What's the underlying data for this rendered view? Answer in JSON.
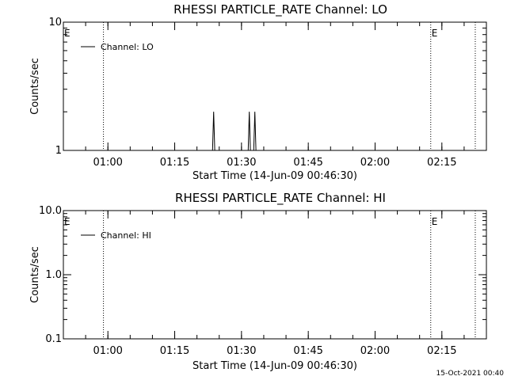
{
  "chart_data": [
    {
      "type": "line",
      "title": "RHESSI PARTICLE_RATE Channel: LO",
      "xlabel": "Start Time (14-Jun-09 00:46:30)",
      "ylabel": "Counts/sec",
      "y_scale": "log",
      "ylim": [
        1,
        10
      ],
      "y_ticks": [
        1,
        10
      ],
      "y_tick_labels": [
        "1",
        "10"
      ],
      "xlim": [
        "00:50:00",
        "02:25:00"
      ],
      "x_ticks": [
        "01:00",
        "01:15",
        "01:30",
        "01:45",
        "02:00",
        "02:15"
      ],
      "legend": {
        "placement": "top-left",
        "entries": [
          "Channel: LO"
        ]
      },
      "series": [
        {
          "name": "Channel: LO",
          "points": [
            [
              "01:23:30",
              1
            ],
            [
              "01:23:45",
              2
            ],
            [
              "01:24:00",
              1
            ],
            [
              "01:31:30",
              1
            ],
            [
              "01:31:45",
              2
            ],
            [
              "01:32:00",
              1
            ],
            [
              "01:32:45",
              1
            ],
            [
              "01:33:00",
              2
            ],
            [
              "01:33:15",
              1
            ]
          ]
        }
      ],
      "vertical_markers": [
        {
          "time": "00:50:00",
          "label": "E",
          "style": "solid"
        },
        {
          "time": "00:59:00",
          "label": "",
          "style": "dotted"
        },
        {
          "time": "02:12:30",
          "label": "E",
          "style": "dotted"
        },
        {
          "time": "02:22:30",
          "label": "",
          "style": "dotted"
        }
      ]
    },
    {
      "type": "line",
      "title": "RHESSI PARTICLE_RATE Channel: HI",
      "xlabel": "Start Time (14-Jun-09 00:46:30)",
      "ylabel": "Counts/sec",
      "y_scale": "log",
      "ylim": [
        0.1,
        10
      ],
      "y_ticks": [
        0.1,
        1,
        10
      ],
      "y_tick_labels": [
        "0.1",
        "1.0",
        "10.0"
      ],
      "xlim": [
        "00:50:00",
        "02:25:00"
      ],
      "x_ticks": [
        "01:00",
        "01:15",
        "01:30",
        "01:45",
        "02:00",
        "02:15"
      ],
      "legend": {
        "placement": "top-left",
        "entries": [
          "Channel: HI"
        ]
      },
      "series": [
        {
          "name": "Channel: HI",
          "points": []
        }
      ],
      "vertical_markers": [
        {
          "time": "00:50:00",
          "label": "E",
          "style": "solid"
        },
        {
          "time": "00:59:00",
          "label": "",
          "style": "dotted"
        },
        {
          "time": "02:12:30",
          "label": "E",
          "style": "dotted"
        },
        {
          "time": "02:22:30",
          "label": "",
          "style": "dotted"
        }
      ]
    }
  ],
  "footer": {
    "timestamp": "15-Oct-2021 00:40"
  }
}
